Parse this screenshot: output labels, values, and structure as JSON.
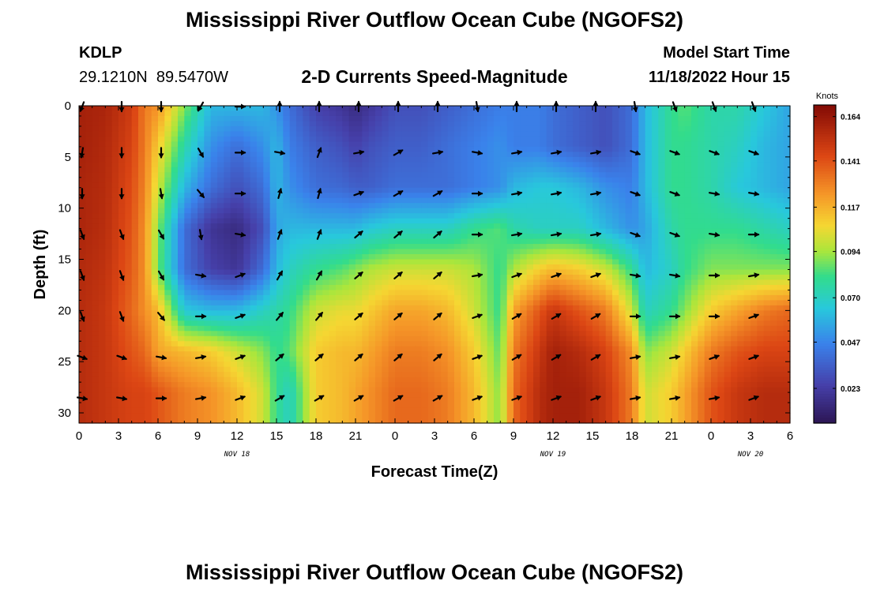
{
  "header": {
    "title": "Mississippi River Outflow Ocean Cube (NGOFS2)",
    "station_id": "KDLP",
    "coordinates": "29.1210N  89.5470W",
    "plot_title": "2-D Currents Speed-Magnitude",
    "model_start_label": "Model Start Time",
    "model_start_value": "11/18/2022 Hour 15"
  },
  "footer": {
    "title": "Mississippi River Outflow Ocean Cube (NGOFS2)"
  },
  "chart_data": {
    "type": "heatmap",
    "title": "2-D Currents Speed-Magnitude",
    "xlabel": "Forecast Time(Z)",
    "ylabel": "Depth (ft)",
    "x_tick_labels": [
      "0",
      "3",
      "6",
      "9",
      "12",
      "15",
      "18",
      "21",
      "0",
      "3",
      "6",
      "9",
      "12",
      "15",
      "18",
      "21",
      "0",
      "3",
      "6"
    ],
    "x_range_hours": [
      0,
      54
    ],
    "date_labels": [
      {
        "text": "NOV 18",
        "at_hour": 12
      },
      {
        "text": "NOV 19",
        "at_hour": 36
      },
      {
        "text": "NOV 20",
        "at_hour": 51
      }
    ],
    "y_ticks": [
      0,
      5,
      10,
      15,
      20,
      25,
      30
    ],
    "ylim": [
      0,
      31
    ],
    "y_inverted": true,
    "colorbar": {
      "unit": "Knots",
      "ticks": [
        "0.164",
        "0.141",
        "0.117",
        "0.094",
        "0.070",
        "0.047",
        "0.023"
      ],
      "range": [
        0.005,
        0.17
      ]
    },
    "vector_times": [
      0,
      3,
      6,
      9,
      12,
      15,
      18,
      21,
      24,
      27,
      30,
      33,
      36,
      39,
      42,
      45,
      48,
      51
    ],
    "vector_depths": [
      0,
      4.5,
      8.5,
      12.5,
      16.5,
      20.5,
      24.5,
      28.5
    ],
    "vector_directions_deg": [
      [
        200,
        180,
        180,
        210,
        90,
        0,
        0,
        0,
        0,
        0,
        170,
        0,
        0,
        0,
        170,
        160,
        160,
        160
      ],
      [
        190,
        180,
        180,
        150,
        90,
        100,
        20,
        80,
        60,
        80,
        100,
        80,
        80,
        80,
        110,
        110,
        110,
        110
      ],
      [
        180,
        180,
        170,
        140,
        90,
        15,
        15,
        70,
        60,
        60,
        90,
        80,
        80,
        80,
        110,
        110,
        100,
        100
      ],
      [
        160,
        160,
        150,
        170,
        100,
        20,
        20,
        50,
        50,
        50,
        90,
        80,
        80,
        80,
        110,
        110,
        100,
        90
      ],
      [
        160,
        160,
        150,
        100,
        70,
        30,
        30,
        50,
        50,
        50,
        80,
        70,
        70,
        70,
        100,
        100,
        90,
        80
      ],
      [
        160,
        160,
        140,
        90,
        70,
        40,
        40,
        50,
        50,
        50,
        70,
        60,
        60,
        60,
        90,
        90,
        90,
        70
      ],
      [
        110,
        110,
        100,
        80,
        70,
        50,
        50,
        50,
        50,
        50,
        70,
        60,
        60,
        60,
        80,
        80,
        70,
        70
      ],
      [
        100,
        100,
        90,
        80,
        70,
        60,
        60,
        60,
        60,
        60,
        70,
        70,
        70,
        70,
        80,
        80,
        80,
        70
      ]
    ],
    "speed_control": {
      "times": [
        0,
        2,
        4,
        5,
        6,
        8,
        10,
        12,
        14,
        15,
        16,
        18,
        20,
        21,
        22,
        24,
        26,
        28,
        30,
        32,
        33,
        35,
        36,
        38,
        40,
        42,
        43,
        45,
        46,
        48,
        50,
        52,
        54
      ],
      "depths": [
        0,
        4,
        8,
        12,
        16,
        20,
        24,
        28,
        31
      ],
      "values": [
        [
          0.16,
          0.158,
          0.148,
          0.13,
          0.125,
          0.09,
          0.06,
          0.06,
          0.06,
          0.05,
          0.04,
          0.025,
          0.02,
          0.015,
          0.02,
          0.03,
          0.03,
          0.035,
          0.04,
          0.045,
          0.045,
          0.045,
          0.04,
          0.035,
          0.03,
          0.04,
          0.06,
          0.08,
          0.085,
          0.075,
          0.075,
          0.065,
          0.055
        ],
        [
          0.16,
          0.156,
          0.145,
          0.13,
          0.11,
          0.075,
          0.05,
          0.04,
          0.05,
          0.06,
          0.045,
          0.035,
          0.03,
          0.025,
          0.03,
          0.035,
          0.035,
          0.04,
          0.045,
          0.05,
          0.045,
          0.045,
          0.04,
          0.035,
          0.03,
          0.04,
          0.06,
          0.08,
          0.08,
          0.075,
          0.07,
          0.06,
          0.055
        ],
        [
          0.158,
          0.155,
          0.142,
          0.128,
          0.1,
          0.06,
          0.04,
          0.03,
          0.04,
          0.06,
          0.05,
          0.04,
          0.038,
          0.035,
          0.035,
          0.04,
          0.04,
          0.04,
          0.045,
          0.05,
          0.06,
          0.065,
          0.065,
          0.06,
          0.05,
          0.045,
          0.06,
          0.08,
          0.08,
          0.075,
          0.065,
          0.06,
          0.055
        ],
        [
          0.158,
          0.154,
          0.14,
          0.125,
          0.09,
          0.04,
          0.02,
          0.015,
          0.03,
          0.055,
          0.06,
          0.06,
          0.06,
          0.06,
          0.065,
          0.07,
          0.07,
          0.07,
          0.08,
          0.085,
          0.075,
          0.07,
          0.07,
          0.07,
          0.06,
          0.05,
          0.055,
          0.075,
          0.08,
          0.08,
          0.08,
          0.075,
          0.07
        ],
        [
          0.156,
          0.152,
          0.138,
          0.125,
          0.088,
          0.04,
          0.025,
          0.02,
          0.04,
          0.06,
          0.07,
          0.08,
          0.085,
          0.09,
          0.095,
          0.1,
          0.1,
          0.1,
          0.095,
          0.08,
          0.095,
          0.11,
          0.115,
          0.11,
          0.1,
          0.08,
          0.06,
          0.07,
          0.08,
          0.09,
          0.09,
          0.09,
          0.09
        ],
        [
          0.155,
          0.15,
          0.135,
          0.125,
          0.115,
          0.065,
          0.06,
          0.06,
          0.07,
          0.075,
          0.08,
          0.1,
          0.105,
          0.105,
          0.11,
          0.12,
          0.12,
          0.115,
          0.1,
          0.08,
          0.12,
          0.14,
          0.15,
          0.14,
          0.13,
          0.1,
          0.07,
          0.08,
          0.09,
          0.11,
          0.12,
          0.13,
          0.135
        ],
        [
          0.155,
          0.15,
          0.14,
          0.135,
          0.12,
          0.115,
          0.11,
          0.1,
          0.09,
          0.08,
          0.085,
          0.11,
          0.115,
          0.115,
          0.12,
          0.13,
          0.13,
          0.125,
          0.11,
          0.085,
          0.13,
          0.15,
          0.16,
          0.155,
          0.145,
          0.125,
          0.09,
          0.1,
          0.11,
          0.13,
          0.14,
          0.145,
          0.145
        ],
        [
          0.155,
          0.15,
          0.145,
          0.145,
          0.14,
          0.13,
          0.125,
          0.115,
          0.1,
          0.08,
          0.07,
          0.11,
          0.115,
          0.12,
          0.125,
          0.135,
          0.135,
          0.13,
          0.115,
          0.09,
          0.135,
          0.155,
          0.16,
          0.16,
          0.15,
          0.13,
          0.1,
          0.11,
          0.12,
          0.14,
          0.15,
          0.155,
          0.155
        ],
        [
          0.155,
          0.15,
          0.145,
          0.145,
          0.14,
          0.13,
          0.125,
          0.115,
          0.1,
          0.08,
          0.07,
          0.11,
          0.115,
          0.12,
          0.125,
          0.135,
          0.135,
          0.13,
          0.115,
          0.09,
          0.135,
          0.155,
          0.16,
          0.16,
          0.15,
          0.13,
          0.1,
          0.11,
          0.12,
          0.14,
          0.15,
          0.155,
          0.155
        ]
      ]
    }
  }
}
